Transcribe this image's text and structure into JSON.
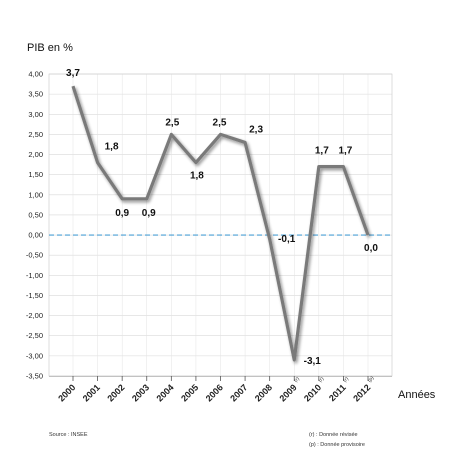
{
  "chart_data": {
    "type": "line",
    "ylabel": "PIB en %",
    "xlabel": "Années",
    "categories": [
      {
        "year": "2000",
        "note": ""
      },
      {
        "year": "2001",
        "note": ""
      },
      {
        "year": "2002",
        "note": ""
      },
      {
        "year": "2003",
        "note": ""
      },
      {
        "year": "2004",
        "note": ""
      },
      {
        "year": "2005",
        "note": ""
      },
      {
        "year": "2006",
        "note": ""
      },
      {
        "year": "2007",
        "note": ""
      },
      {
        "year": "2008",
        "note": ""
      },
      {
        "year": "2009",
        "note": "(r)"
      },
      {
        "year": "2010",
        "note": "(r)"
      },
      {
        "year": "2011",
        "note": "(r)"
      },
      {
        "year": "2012",
        "note": "(p)"
      }
    ],
    "values": [
      3.7,
      1.8,
      0.9,
      0.9,
      2.5,
      1.8,
      2.5,
      2.3,
      -0.1,
      -3.1,
      1.7,
      1.7,
      0.0
    ],
    "value_labels": [
      "3,7",
      "1,8",
      "0,9",
      "0,9",
      "2,5",
      "1,8",
      "2,5",
      "2,3",
      "-0,1",
      "-3,1",
      "1,7",
      "1,7",
      "0,0"
    ],
    "yticks": [
      4.0,
      3.5,
      3.0,
      2.5,
      2.0,
      1.5,
      1.0,
      0.5,
      0.0,
      -0.5,
      -1.0,
      -1.5,
      -2.0,
      -2.5,
      -3.0,
      -3.5
    ],
    "ytick_labels": [
      "4,00",
      "3,50",
      "3,00",
      "2,50",
      "2,00",
      "1,50",
      "1,00",
      "0,50",
      "0,00",
      "-0,50",
      "-1,00",
      "-1,50",
      "-2,00",
      "-2,50",
      "-3,00",
      "-3,50"
    ],
    "ylim": [
      -3.5,
      4.0
    ],
    "grid": true,
    "reference_line": {
      "value": 0.0,
      "style": "dashed",
      "color": "#4a9fd4"
    },
    "line_color": "#7a7a7a",
    "source": "Source : INSEE",
    "footnotes": [
      "(r) : Donnée révisée",
      "(p) : Donnée provisoire"
    ]
  }
}
